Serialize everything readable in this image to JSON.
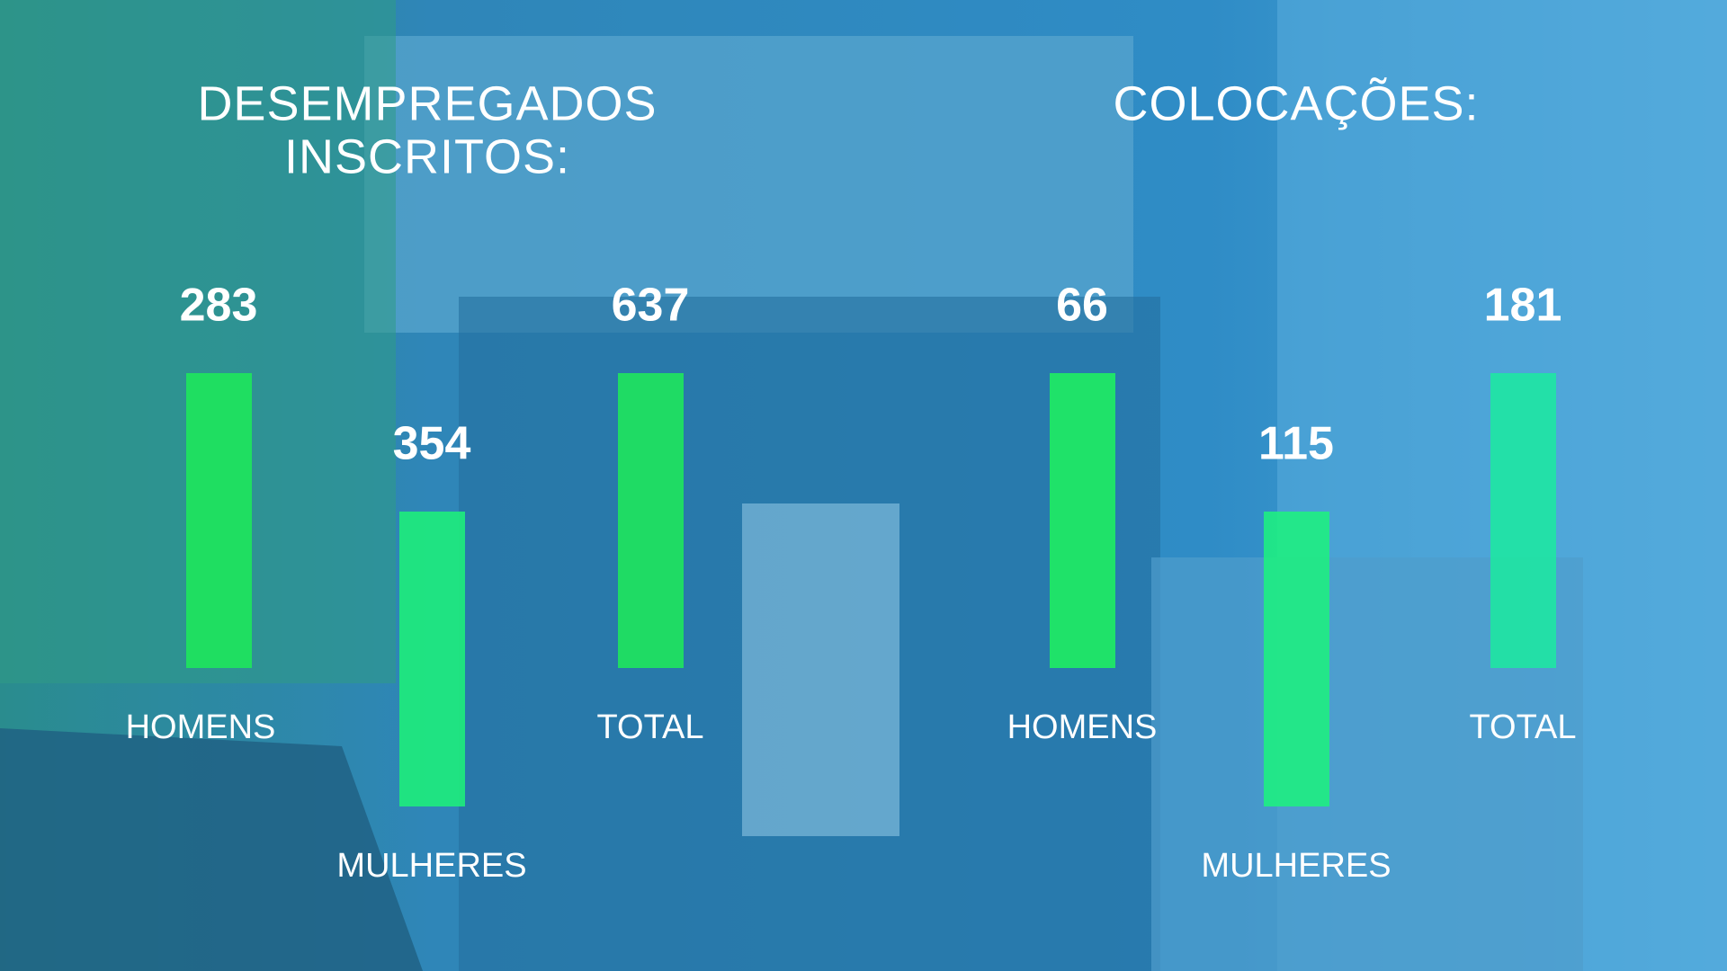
{
  "panels": [
    {
      "title_lines": [
        "DESEMPREGADOS",
        "INSCRITOS:"
      ],
      "items": [
        {
          "label": "HOMENS",
          "value": 283
        },
        {
          "label": "MULHERES",
          "value": 354
        },
        {
          "label": "TOTAL",
          "value": 637
        }
      ]
    },
    {
      "title_lines": [
        "COLOCAÇÕES:"
      ],
      "items": [
        {
          "label": "HOMENS",
          "value": 66
        },
        {
          "label": "MULHERES",
          "value": 115
        },
        {
          "label": "TOTAL",
          "value": 181
        }
      ]
    }
  ]
}
